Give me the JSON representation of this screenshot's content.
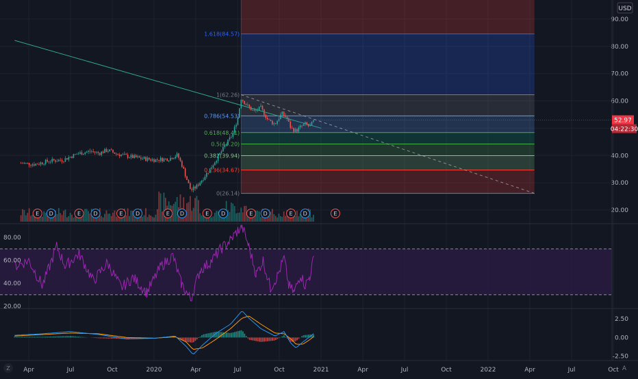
{
  "currency": "USD",
  "badges": {
    "price": "52.97",
    "countdown": "04:22:30",
    "price_color": "#f23645",
    "countdown_color": "#b22833"
  },
  "corner": {
    "left": "Z",
    "right": "A"
  },
  "colors": {
    "background": "#131722",
    "grid": "#1e222d",
    "axis_text": "#b2b5be",
    "candle_up": "#26a69a",
    "candle_down": "#ef5350",
    "trendline": "#2ca58d",
    "rsi_line": "#9c27b0",
    "rsi_band_fill": "#2a1b44",
    "macd_line": "#2196f3",
    "signal_line": "#ff9800",
    "earnings_badge": "#ef5350",
    "dividend_badge": "#2196f3"
  },
  "chart_data": [
    {
      "type": "candlestick",
      "pane": "price",
      "x_ticks": [
        "Apr",
        "Jul",
        "Oct",
        "2020",
        "Apr",
        "Jul",
        "Oct",
        "2021",
        "Apr",
        "Jul",
        "Oct",
        "2022",
        "Apr",
        "Jul",
        "Oct"
      ],
      "y_ticks": [
        "90.00",
        "80.00",
        "70.00",
        "60.00",
        "50.00",
        "40.00",
        "30.00",
        "20.00"
      ],
      "ylim": [
        15,
        97
      ],
      "close_series": [
        [
          "2019-03-15",
          37.2
        ],
        [
          "2019-04-15",
          36.8
        ],
        [
          "2019-05-15",
          38.0
        ],
        [
          "2019-06-15",
          38.4
        ],
        [
          "2019-07-15",
          40.6
        ],
        [
          "2019-08-15",
          41.6
        ],
        [
          "2019-09-01",
          40.8
        ],
        [
          "2019-09-20",
          42.0
        ],
        [
          "2019-10-10",
          40.6
        ],
        [
          "2019-11-01",
          39.8
        ],
        [
          "2019-12-01",
          39.0
        ],
        [
          "2020-01-01",
          38.4
        ],
        [
          "2020-02-01",
          38.8
        ],
        [
          "2020-02-20",
          40.2
        ],
        [
          "2020-03-02",
          36.0
        ],
        [
          "2020-03-12",
          31.0
        ],
        [
          "2020-03-20",
          27.2
        ],
        [
          "2020-04-01",
          28.5
        ],
        [
          "2020-04-15",
          31.5
        ],
        [
          "2020-05-01",
          35.0
        ],
        [
          "2020-05-20",
          40.0
        ],
        [
          "2020-06-05",
          44.0
        ],
        [
          "2020-06-20",
          48.0
        ],
        [
          "2020-07-01",
          54.0
        ],
        [
          "2020-07-08",
          61.0
        ],
        [
          "2020-07-20",
          58.5
        ],
        [
          "2020-08-05",
          56.0
        ],
        [
          "2020-08-20",
          57.5
        ],
        [
          "2020-09-05",
          53.0
        ],
        [
          "2020-09-20",
          51.5
        ],
        [
          "2020-10-05",
          55.5
        ],
        [
          "2020-10-15",
          54.0
        ],
        [
          "2020-10-25",
          50.0
        ],
        [
          "2020-11-05",
          49.0
        ],
        [
          "2020-11-15",
          50.5
        ],
        [
          "2020-11-25",
          51.5
        ],
        [
          "2020-12-05",
          50.5
        ],
        [
          "2020-12-15",
          52.97
        ]
      ],
      "last_price": 52.97,
      "fibonacci": [
        {
          "label": "1.618(84.57)",
          "ratio": 1.618,
          "price": 84.57,
          "color": "#2962ff"
        },
        {
          "label": "1(62.26)",
          "ratio": 1,
          "price": 62.26,
          "color": "#787b86"
        },
        {
          "label": "0.786(54.53)",
          "ratio": 0.786,
          "price": 54.53,
          "color": "#5b9cf6"
        },
        {
          "label": "0.618(48.41)",
          "ratio": 0.618,
          "price": 48.41,
          "color": "#4caf50"
        },
        {
          "label": "0.5(44.20)",
          "ratio": 0.5,
          "price": 44.2,
          "color": "#4caf50"
        },
        {
          "label": "0.382(39.94)",
          "ratio": 0.382,
          "price": 39.94,
          "color": "#81c784"
        },
        {
          "label": "0.236(34.67)",
          "ratio": 0.236,
          "price": 34.67,
          "color": "#f44336"
        },
        {
          "label": "0(26.14)",
          "ratio": 0,
          "price": 26.14,
          "color": "#787b86"
        }
      ],
      "fib_bands": [
        {
          "from": 84.57,
          "to": 97,
          "color": "#f44336"
        },
        {
          "from": 62.26,
          "to": 84.57,
          "color": "#2962ff"
        },
        {
          "from": 54.53,
          "to": 62.26,
          "color": "#787b86"
        },
        {
          "from": 48.41,
          "to": 54.53,
          "color": "#5b9cf6"
        },
        {
          "from": 44.2,
          "to": 48.41,
          "color": "#089981"
        },
        {
          "from": 39.94,
          "to": 44.2,
          "color": "#4caf50"
        },
        {
          "from": 34.67,
          "to": 39.94,
          "color": "#81c784"
        },
        {
          "from": 26.14,
          "to": 34.67,
          "color": "#f44336"
        }
      ],
      "fib_range": [
        "2020-07-08",
        "2022-04-10"
      ],
      "trendlines": [
        {
          "from": [
            "2019-03-01",
            82.2
          ],
          "to": [
            "2020-12-30",
            50.0
          ],
          "style": "solid"
        },
        {
          "from": [
            "2020-07-08",
            62.26
          ],
          "to": [
            "2022-04-10",
            26.14
          ],
          "style": "dashed"
        }
      ],
      "events": [
        {
          "date": "2019-04-20",
          "kind": "E"
        },
        {
          "date": "2019-05-20",
          "kind": "D"
        },
        {
          "date": "2019-07-20",
          "kind": "E"
        },
        {
          "date": "2019-08-25",
          "kind": "D"
        },
        {
          "date": "2019-10-20",
          "kind": "E"
        },
        {
          "date": "2019-11-25",
          "kind": "D"
        },
        {
          "date": "2020-01-30",
          "kind": "E"
        },
        {
          "date": "2020-03-01",
          "kind": "D"
        },
        {
          "date": "2020-04-25",
          "kind": "E"
        },
        {
          "date": "2020-05-30",
          "kind": "D"
        },
        {
          "date": "2020-07-30",
          "kind": "E"
        },
        {
          "date": "2020-08-30",
          "kind": "D"
        },
        {
          "date": "2020-10-25",
          "kind": "E"
        },
        {
          "date": "2020-11-25",
          "kind": "D"
        },
        {
          "date": "2021-01-30",
          "kind": "E"
        }
      ]
    },
    {
      "type": "line",
      "pane": "rsi",
      "name": "RSI",
      "y_ticks": [
        "80.00",
        "60.00",
        "40.00",
        "20.00"
      ],
      "ylim": [
        18,
        92
      ],
      "band": [
        30,
        70
      ],
      "series": [
        [
          "2019-03-01",
          55
        ],
        [
          "2019-04-01",
          60
        ],
        [
          "2019-05-01",
          38
        ],
        [
          "2019-06-01",
          72
        ],
        [
          "2019-06-20",
          55
        ],
        [
          "2019-07-20",
          66
        ],
        [
          "2019-08-20",
          42
        ],
        [
          "2019-09-20",
          58
        ],
        [
          "2019-10-20",
          36
        ],
        [
          "2019-11-15",
          45
        ],
        [
          "2019-12-15",
          32
        ],
        [
          "2020-01-15",
          55
        ],
        [
          "2020-02-10",
          64
        ],
        [
          "2020-02-28",
          40
        ],
        [
          "2020-03-20",
          26
        ],
        [
          "2020-04-10",
          52
        ],
        [
          "2020-05-01",
          58
        ],
        [
          "2020-05-25",
          70
        ],
        [
          "2020-06-15",
          78
        ],
        [
          "2020-07-01",
          86
        ],
        [
          "2020-07-10",
          90
        ],
        [
          "2020-07-25",
          72
        ],
        [
          "2020-08-10",
          48
        ],
        [
          "2020-08-25",
          60
        ],
        [
          "2020-09-10",
          36
        ],
        [
          "2020-09-25",
          46
        ],
        [
          "2020-10-10",
          62
        ],
        [
          "2020-10-20",
          38
        ],
        [
          "2020-11-01",
          32
        ],
        [
          "2020-11-15",
          48
        ],
        [
          "2020-11-25",
          38
        ],
        [
          "2020-12-05",
          46
        ],
        [
          "2020-12-15",
          64
        ]
      ]
    },
    {
      "type": "line",
      "pane": "macd",
      "name": "MACD",
      "y_ticks": [
        "2.50",
        "0.00",
        "-2.50"
      ],
      "ylim": [
        -3.1,
        3.9
      ],
      "series": [
        {
          "name": "MACD",
          "values": [
            [
              "2019-03-01",
              0.3
            ],
            [
              "2019-05-01",
              0.5
            ],
            [
              "2019-07-01",
              0.8
            ],
            [
              "2019-09-01",
              0.4
            ],
            [
              "2019-11-01",
              -0.2
            ],
            [
              "2020-01-01",
              -0.1
            ],
            [
              "2020-02-15",
              0.2
            ],
            [
              "2020-03-10",
              -1.2
            ],
            [
              "2020-03-25",
              -2.3
            ],
            [
              "2020-04-15",
              -1.0
            ],
            [
              "2020-05-15",
              0.6
            ],
            [
              "2020-06-15",
              1.8
            ],
            [
              "2020-07-10",
              3.6
            ],
            [
              "2020-07-25",
              2.6
            ],
            [
              "2020-08-20",
              1.2
            ],
            [
              "2020-09-20",
              0.2
            ],
            [
              "2020-10-10",
              0.8
            ],
            [
              "2020-10-25",
              -0.8
            ],
            [
              "2020-11-05",
              -1.4
            ],
            [
              "2020-11-20",
              -0.6
            ],
            [
              "2020-12-05",
              0.1
            ],
            [
              "2020-12-15",
              0.6
            ]
          ]
        },
        {
          "name": "Signal",
          "values": [
            [
              "2019-03-01",
              0.2
            ],
            [
              "2019-05-01",
              0.4
            ],
            [
              "2019-07-01",
              0.6
            ],
            [
              "2019-09-01",
              0.5
            ],
            [
              "2019-11-01",
              0.0
            ],
            [
              "2020-01-01",
              -0.1
            ],
            [
              "2020-02-15",
              0.1
            ],
            [
              "2020-03-10",
              -0.6
            ],
            [
              "2020-03-25",
              -1.6
            ],
            [
              "2020-04-15",
              -1.4
            ],
            [
              "2020-05-15",
              -0.2
            ],
            [
              "2020-06-15",
              1.2
            ],
            [
              "2020-07-10",
              2.6
            ],
            [
              "2020-07-25",
              2.9
            ],
            [
              "2020-08-20",
              1.8
            ],
            [
              "2020-09-20",
              0.6
            ],
            [
              "2020-10-10",
              0.5
            ],
            [
              "2020-10-25",
              -0.2
            ],
            [
              "2020-11-05",
              -0.9
            ],
            [
              "2020-11-20",
              -0.9
            ],
            [
              "2020-12-05",
              -0.3
            ],
            [
              "2020-12-15",
              0.2
            ]
          ]
        }
      ]
    }
  ]
}
